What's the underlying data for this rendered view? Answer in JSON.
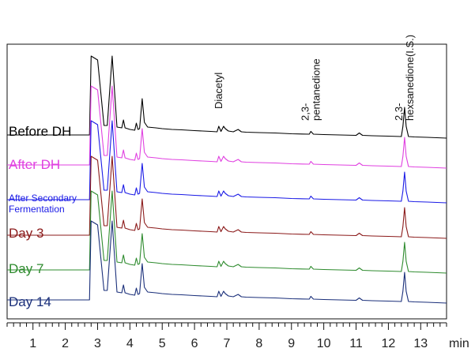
{
  "chart_data": {
    "type": "line",
    "title": "",
    "xlabel": "",
    "ylabel": "",
    "x_unit": "min",
    "xlim": [
      0.2,
      13.8
    ],
    "xticks": [
      "1",
      "2",
      "3",
      "4",
      "5",
      "6",
      "7",
      "8",
      "9",
      "10",
      "11",
      "12",
      "13"
    ],
    "grid": false,
    "legend": "left, inline beside each trace",
    "peak_annotations": [
      {
        "lines": [
          "Diacetyl"
        ],
        "x": 6.75
      },
      {
        "lines": [
          "2,3-",
          "pentanedione"
        ],
        "x": 9.6
      },
      {
        "lines": [
          "2,3-",
          "hexsanedione(I.S.)"
        ],
        "x": 12.5
      }
    ],
    "baseline_shape": {
      "x": [
        2.75,
        2.8,
        3.0,
        3.2,
        3.3,
        3.45,
        3.6,
        3.75,
        3.8,
        3.85,
        4.0,
        4.15,
        4.2,
        4.25,
        4.3,
        4.38,
        4.45,
        4.55,
        4.8,
        5.0,
        5.3,
        5.6,
        6.0,
        6.5,
        6.7,
        6.75,
        6.82,
        6.9,
        6.95,
        7.05,
        7.2,
        7.35,
        7.45,
        7.6,
        8.0,
        8.5,
        9.0,
        9.55,
        9.6,
        9.68,
        10.0,
        10.5,
        11.0,
        11.1,
        11.2,
        11.5,
        12.0,
        12.4,
        12.45,
        12.5,
        12.55,
        12.62,
        12.8,
        13.2,
        13.8
      ],
      "y": [
        0,
        10.0,
        9.5,
        1.2,
        1.2,
        10.0,
        1.0,
        0.9,
        1.9,
        0.9,
        0.7,
        0.6,
        1.5,
        0.7,
        0.8,
        4.6,
        1.6,
        1.0,
        0.9,
        0.8,
        0.7,
        0.65,
        0.55,
        0.45,
        0.4,
        1.1,
        0.45,
        1.1,
        0.8,
        0.5,
        0.4,
        0.7,
        0.4,
        0.35,
        0.3,
        0.25,
        0.15,
        0.1,
        0.45,
        0.1,
        0.05,
        0.0,
        -0.05,
        0.25,
        -0.05,
        -0.1,
        -0.15,
        -0.2,
        1.1,
        3.5,
        1.1,
        -0.2,
        -0.25,
        -0.3,
        -0.4
      ]
    },
    "series": [
      {
        "name": "Before DH",
        "color": "#000000"
      },
      {
        "name": "After DH",
        "color": "#e040e0"
      },
      {
        "name": "After Secondary Fermentation",
        "color": "#1a1ae6"
      },
      {
        "name": "Day 3",
        "color": "#8b1a1a"
      },
      {
        "name": "Day 7",
        "color": "#2e8b2e"
      },
      {
        "name": "Day 14",
        "color": "#1a2f7a"
      }
    ]
  }
}
